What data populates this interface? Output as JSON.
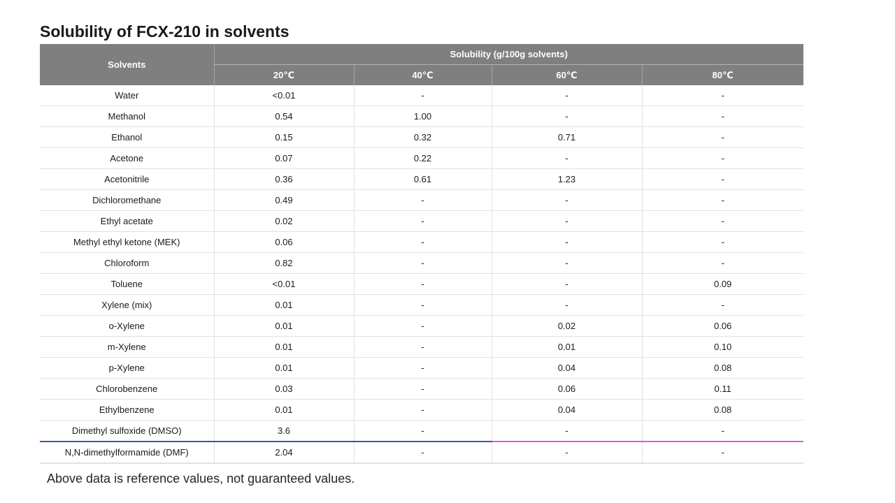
{
  "title": "Solubility of FCX-210 in solvents",
  "table": {
    "solvents_header": "Solvents",
    "group_header": "Solubility (g/100g solvents)",
    "temps": [
      "20℃",
      "40℃",
      "60℃",
      "80℃"
    ],
    "rows": [
      {
        "solvent": "Water",
        "values": [
          "<0.01",
          "-",
          "-",
          "-"
        ]
      },
      {
        "solvent": "Methanol",
        "values": [
          "0.54",
          "1.00",
          "-",
          "-"
        ]
      },
      {
        "solvent": "Ethanol",
        "values": [
          "0.15",
          "0.32",
          "0.71",
          "-"
        ]
      },
      {
        "solvent": "Acetone",
        "values": [
          "0.07",
          "0.22",
          "-",
          "-"
        ]
      },
      {
        "solvent": "Acetonitrile",
        "values": [
          "0.36",
          "0.61",
          "1.23",
          "-"
        ]
      },
      {
        "solvent": "Dichloromethane",
        "values": [
          "0.49",
          "-",
          "-",
          "-"
        ]
      },
      {
        "solvent": "Ethyl acetate",
        "values": [
          "0.02",
          "-",
          "-",
          "-"
        ]
      },
      {
        "solvent": "Methyl ethyl ketone (MEK)",
        "values": [
          "0.06",
          "-",
          "-",
          "-"
        ]
      },
      {
        "solvent": "Chloroform",
        "values": [
          "0.82",
          "-",
          "-",
          "-"
        ]
      },
      {
        "solvent": "Toluene",
        "values": [
          "<0.01",
          "-",
          "-",
          "0.09"
        ]
      },
      {
        "solvent": "Xylene (mix)",
        "values": [
          "0.01",
          "-",
          "-",
          "-"
        ]
      },
      {
        "solvent": "o-Xylene",
        "values": [
          "0.01",
          "-",
          "0.02",
          "0.06"
        ]
      },
      {
        "solvent": "m-Xylene",
        "values": [
          "0.01",
          "-",
          "0.01",
          "0.10"
        ]
      },
      {
        "solvent": "p-Xylene",
        "values": [
          "0.01",
          "-",
          "0.04",
          "0.08"
        ]
      },
      {
        "solvent": "Chlorobenzene",
        "values": [
          "0.03",
          "-",
          "0.06",
          "0.11"
        ]
      },
      {
        "solvent": "Ethylbenzene",
        "values": [
          "0.01",
          "-",
          "0.04",
          "0.08"
        ]
      },
      {
        "solvent": "Dimethyl sulfoxide (DMSO)",
        "values": [
          "3.6",
          "-",
          "-",
          "-"
        ]
      },
      {
        "solvent": "N,N-dimethylformamide (DMF)",
        "values": [
          "2.04",
          "-",
          "-",
          "-"
        ]
      }
    ]
  },
  "note": "Above data is reference values, not guaranteed values.",
  "colors": {
    "header_bg": "#7f7f7f",
    "highlight_line_blue": "#2f5ea8",
    "highlight_line_pink": "#d65bd6"
  }
}
